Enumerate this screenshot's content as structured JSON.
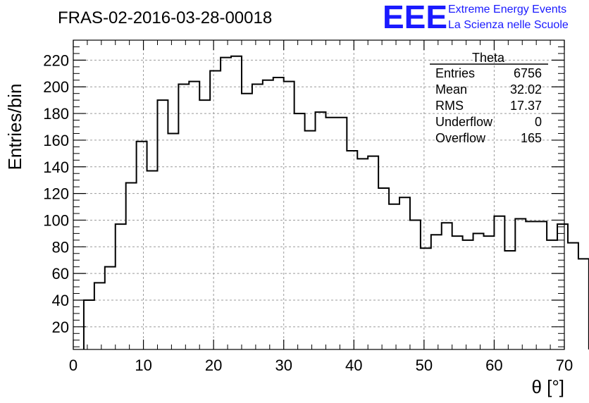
{
  "title": "FRAS-02-2016-03-28-00018",
  "logo": {
    "mark": "EEE",
    "line1": "Extreme Energy Events",
    "line2": "La Scienza nelle Scuole",
    "color": "#1a1aff"
  },
  "stats": {
    "name": "Theta",
    "rows": [
      {
        "label": "Entries",
        "value": "6756"
      },
      {
        "label": "Mean",
        "value": "32.02"
      },
      {
        "label": "RMS",
        "value": "17.37"
      },
      {
        "label": "Underflow",
        "value": "0"
      },
      {
        "label": "Overflow",
        "value": "165"
      }
    ]
  },
  "chart_data": {
    "type": "bar",
    "style": "step-histogram",
    "xlabel": "θ [°]",
    "ylabel": "Entries/bin",
    "xlim": [
      0,
      70
    ],
    "ylim": [
      3,
      235
    ],
    "grid": true,
    "bin_width": 1.5,
    "bin_start": 1.5,
    "x_ticks": [
      0,
      10,
      20,
      30,
      40,
      50,
      60,
      70
    ],
    "y_ticks": [
      20,
      40,
      60,
      80,
      100,
      120,
      140,
      160,
      180,
      200,
      220
    ],
    "values": [
      40,
      53,
      65,
      97,
      128,
      159,
      137,
      190,
      165,
      202,
      204,
      190,
      212,
      222,
      223,
      195,
      202,
      205,
      207,
      204,
      180,
      167,
      181,
      177,
      177,
      152,
      146,
      148,
      124,
      112,
      117,
      100,
      79,
      89,
      98,
      88,
      85,
      90,
      88,
      103,
      77,
      101,
      99,
      99,
      85,
      97,
      83,
      71
    ]
  }
}
